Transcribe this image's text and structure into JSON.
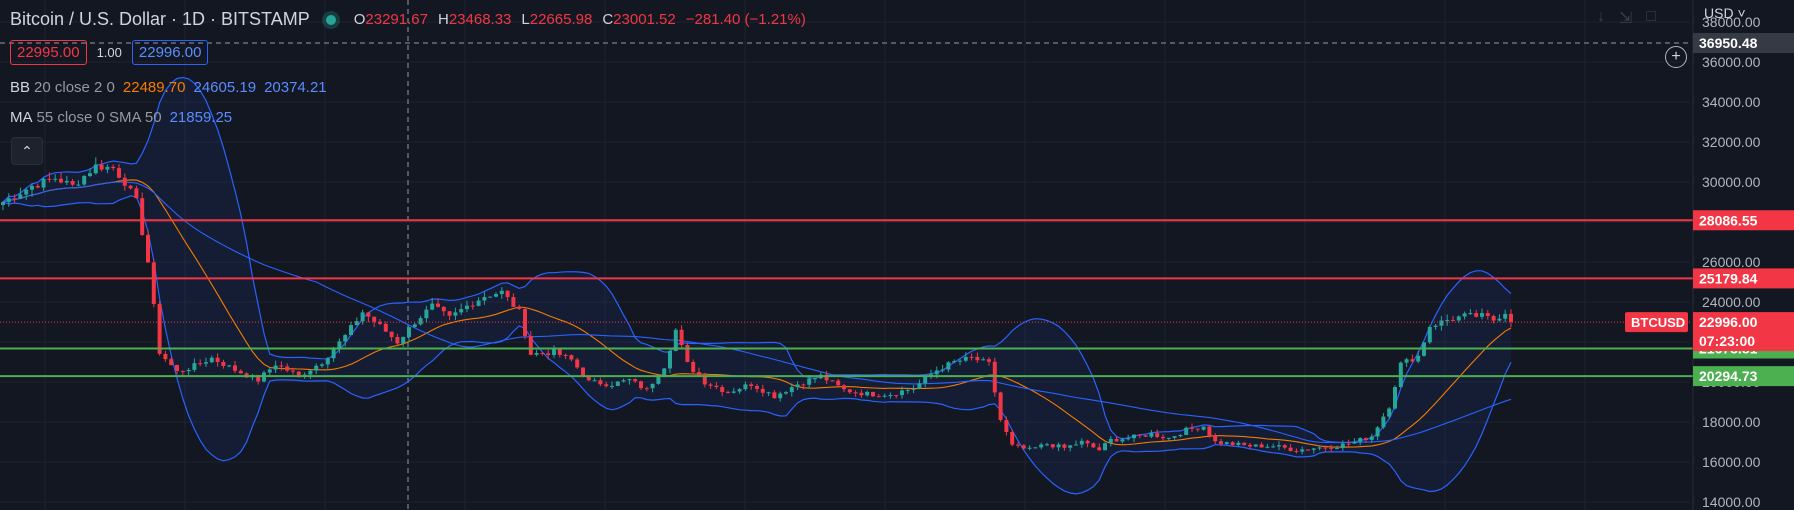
{
  "header": {
    "symbol_title": "Bitcoin / U.S. Dollar · 1D · BITSTAMP",
    "ohlc": {
      "open_label": "O",
      "open": "23291.67",
      "high_label": "H",
      "high": "23468.33",
      "low_label": "L",
      "low": "22665.98",
      "close_label": "C",
      "close": "23001.52",
      "change": "−281.40 (−1.21%)"
    }
  },
  "trade": {
    "bid": "22995.00",
    "quantity": "1.00",
    "ask": "22996.00"
  },
  "indicators": {
    "bb": {
      "name": "BB",
      "params": "20 close 2 0",
      "basis": "22489.70",
      "upper": "24605.19",
      "lower": "20374.21"
    },
    "ma": {
      "name": "MA",
      "params": "55 close 0 SMA 50",
      "value": "21859.25"
    }
  },
  "price_scale": {
    "currency": "USD"
  },
  "chart_data": {
    "type": "candlestick",
    "y_ticks": [
      38000,
      36000,
      34000,
      32000,
      30000,
      28000,
      26000,
      24000,
      22000,
      20000,
      18000,
      16000,
      14000
    ],
    "ylim": [
      13600,
      39100
    ],
    "price_labels": {
      "crosshair": "36950.48",
      "symbol": "BTCUSD",
      "last": "22996.00",
      "countdown": "07:23:00"
    },
    "horizontal_lines": [
      {
        "price": 28086.55,
        "label": "28086.55",
        "color": "#f23645"
      },
      {
        "price": 25179.84,
        "label": "25179.84",
        "color": "#f23645"
      },
      {
        "price": 21673.81,
        "label": "21673.81",
        "color": "#4caf50"
      },
      {
        "price": 20294.73,
        "label": "20294.73",
        "color": "#4caf50"
      }
    ],
    "colors": {
      "up": "#26a69a",
      "down": "#f23645",
      "bb": "#2962ff",
      "ma": "#f57c00",
      "grid": "#1f2330"
    },
    "anchors": [
      [
        0,
        29000
      ],
      [
        5,
        29800
      ],
      [
        9,
        30200
      ],
      [
        12,
        29800
      ],
      [
        16,
        30800
      ],
      [
        19,
        30700
      ],
      [
        21,
        30000
      ],
      [
        23,
        29000
      ],
      [
        25,
        26000
      ],
      [
        27,
        21500
      ],
      [
        30,
        20500
      ],
      [
        33,
        20800
      ],
      [
        36,
        21200
      ],
      [
        40,
        20600
      ],
      [
        44,
        20100
      ],
      [
        47,
        20900
      ],
      [
        51,
        20300
      ],
      [
        55,
        21000
      ],
      [
        59,
        22300
      ],
      [
        62,
        23500
      ],
      [
        65,
        22800
      ],
      [
        68,
        22000
      ],
      [
        71,
        23000
      ],
      [
        74,
        23800
      ],
      [
        77,
        23200
      ],
      [
        80,
        23800
      ],
      [
        83,
        24300
      ],
      [
        86,
        24500
      ],
      [
        89,
        23500
      ],
      [
        91,
        21400
      ],
      [
        95,
        21500
      ],
      [
        98,
        21100
      ],
      [
        101,
        20000
      ],
      [
        105,
        19900
      ],
      [
        108,
        20100
      ],
      [
        111,
        19600
      ],
      [
        114,
        20800
      ],
      [
        116,
        22600
      ],
      [
        118,
        20900
      ],
      [
        121,
        20000
      ],
      [
        125,
        19500
      ],
      [
        129,
        19900
      ],
      [
        133,
        19300
      ],
      [
        137,
        19900
      ],
      [
        141,
        20300
      ],
      [
        145,
        19600
      ],
      [
        149,
        19400
      ],
      [
        153,
        19400
      ],
      [
        157,
        19700
      ],
      [
        161,
        20600
      ],
      [
        164,
        21000
      ],
      [
        167,
        21200
      ],
      [
        170,
        20900
      ],
      [
        172,
        18100
      ],
      [
        174,
        16800
      ],
      [
        177,
        16600
      ],
      [
        180,
        16900
      ],
      [
        183,
        16700
      ],
      [
        186,
        17000
      ],
      [
        189,
        16600
      ],
      [
        191,
        17100
      ],
      [
        194,
        17200
      ],
      [
        198,
        17400
      ],
      [
        201,
        17200
      ],
      [
        204,
        17600
      ],
      [
        207,
        17800
      ],
      [
        209,
        17000
      ],
      [
        212,
        16900
      ],
      [
        215,
        16800
      ],
      [
        219,
        16800
      ],
      [
        223,
        16600
      ],
      [
        226,
        16700
      ],
      [
        230,
        16800
      ],
      [
        233,
        17000
      ],
      [
        236,
        17300
      ],
      [
        239,
        18800
      ],
      [
        241,
        20900
      ],
      [
        244,
        21300
      ],
      [
        246,
        22800
      ],
      [
        249,
        23100
      ],
      [
        252,
        23300
      ],
      [
        255,
        23300
      ],
      [
        257,
        23100
      ],
      [
        259,
        23500
      ],
      [
        260,
        23000
      ]
    ]
  }
}
